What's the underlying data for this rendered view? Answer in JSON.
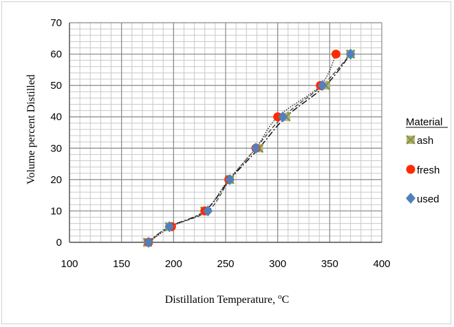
{
  "chart_data": {
    "type": "scatter",
    "title": "",
    "xlabel": "Distillation Temperature, °C",
    "xlabel_main": "Distillation Temperature, ",
    "xlabel_sup": "o",
    "xlabel_unit": "C",
    "ylabel": "Volume percent Distilled",
    "xlim": [
      100,
      400
    ],
    "ylim": [
      0,
      70
    ],
    "x_major_ticks": [
      100,
      150,
      200,
      250,
      300,
      350,
      400
    ],
    "y_major_ticks": [
      0,
      10,
      20,
      30,
      40,
      50,
      60,
      70
    ],
    "grid": true,
    "legend": {
      "title": "Material",
      "position": "right"
    },
    "series": [
      {
        "name": "ash",
        "marker": "x-square",
        "color": "#7a9a3a",
        "line_style": "dash-dot",
        "x": [
          175,
          196,
          230,
          254,
          282,
          308,
          346,
          370
        ],
        "y": [
          0,
          5,
          10,
          20,
          30,
          40,
          50,
          60
        ]
      },
      {
        "name": "fresh",
        "marker": "circle",
        "color": "#ff2a00",
        "line_style": "dotted",
        "x": [
          176,
          198,
          230,
          253,
          279,
          300,
          341,
          356
        ],
        "y": [
          0,
          5,
          10,
          20,
          30,
          40,
          50,
          60
        ]
      },
      {
        "name": "used",
        "marker": "diamond",
        "color": "#4f81bd",
        "line_style": "dashed",
        "x": [
          176,
          196,
          233,
          254,
          279,
          305,
          343,
          370
        ],
        "y": [
          0,
          5,
          10,
          20,
          30,
          40,
          50,
          60
        ]
      }
    ]
  }
}
